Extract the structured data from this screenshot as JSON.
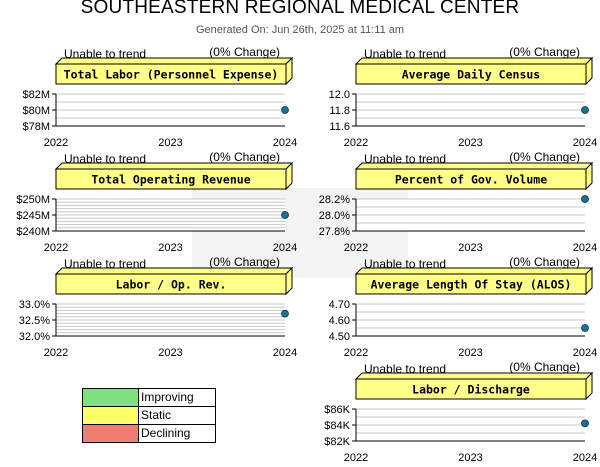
{
  "title": "SOUTHEASTERN REGIONAL MEDICAL CENTER",
  "generated": "Generated On: Jun 26th, 2025 at 11:11 am",
  "colors": {
    "banner": "#ffff88",
    "grid": "#c8c8c8",
    "point": "#1b6f95"
  },
  "legend": [
    {
      "label": "Improving",
      "color": "#7fe27f"
    },
    {
      "label": "Static",
      "color": "#ffff66"
    },
    {
      "label": "Declining",
      "color": "#f07d72"
    }
  ],
  "chart_data": [
    {
      "id": "total-labor",
      "type": "line",
      "title": "Total Labor (Personnel Expense)",
      "trend": "Unable to trend",
      "change": "(0% Change)",
      "x": [
        "2022",
        "2023",
        "2024"
      ],
      "ylim": [
        78,
        82
      ],
      "yticks": [
        {
          "v": 82,
          "label": "$82M"
        },
        {
          "v": 80,
          "label": "$80M"
        },
        {
          "v": 78,
          "label": "$78M"
        }
      ],
      "grid_steps": 4,
      "points": [
        {
          "x": "2024",
          "y": 80
        }
      ]
    },
    {
      "id": "average-daily-census",
      "type": "line",
      "title": "Average Daily Census",
      "trend": "Unable to trend",
      "change": "(0% Change)",
      "x": [
        "2022",
        "2023",
        "2024"
      ],
      "ylim": [
        11.6,
        12.0
      ],
      "yticks": [
        {
          "v": 12.0,
          "label": "12.0"
        },
        {
          "v": 11.8,
          "label": "11.8"
        },
        {
          "v": 11.6,
          "label": "11.6"
        }
      ],
      "grid_steps": 4,
      "points": [
        {
          "x": "2024",
          "y": 11.8
        }
      ]
    },
    {
      "id": "total-operating-revenue",
      "type": "line",
      "title": "Total Operating Revenue",
      "trend": "Unable to trend",
      "change": "(0% Change)",
      "x": [
        "2022",
        "2023",
        "2024"
      ],
      "ylim": [
        240,
        250
      ],
      "yticks": [
        {
          "v": 250,
          "label": "$250M"
        },
        {
          "v": 245,
          "label": "$245M"
        },
        {
          "v": 240,
          "label": "$240M"
        }
      ],
      "grid_steps": 10,
      "points": [
        {
          "x": "2024",
          "y": 245
        }
      ]
    },
    {
      "id": "percent-gov-volume",
      "type": "line",
      "title": "Percent of Gov. Volume",
      "trend": "Unable to trend",
      "change": "(0% Change)",
      "x": [
        "2022",
        "2023",
        "2024"
      ],
      "ylim": [
        27.8,
        28.2
      ],
      "yticks": [
        {
          "v": 28.2,
          "label": "28.2%"
        },
        {
          "v": 28.0,
          "label": "28.0%"
        },
        {
          "v": 27.8,
          "label": "27.8%"
        }
      ],
      "grid_steps": 4,
      "points": [
        {
          "x": "2024",
          "y": 28.2
        }
      ]
    },
    {
      "id": "labor-op-rev",
      "type": "line",
      "title": "Labor / Op. Rev.",
      "trend": "Unable to trend",
      "change": "(0% Change)",
      "x": [
        "2022",
        "2023",
        "2024"
      ],
      "ylim": [
        32.0,
        33.0
      ],
      "yticks": [
        {
          "v": 33.0,
          "label": "33.0%"
        },
        {
          "v": 32.5,
          "label": "32.5%"
        },
        {
          "v": 32.0,
          "label": "32.0%"
        }
      ],
      "grid_steps": 10,
      "points": [
        {
          "x": "2024",
          "y": 32.7
        }
      ]
    },
    {
      "id": "average-length-of-stay",
      "type": "line",
      "title": "Average Length Of Stay (ALOS)",
      "trend": "Unable to trend",
      "change": "(0% Change)",
      "x": [
        "2022",
        "2023",
        "2024"
      ],
      "ylim": [
        4.5,
        4.7
      ],
      "yticks": [
        {
          "v": 4.7,
          "label": "4.70"
        },
        {
          "v": 4.6,
          "label": "4.60"
        },
        {
          "v": 4.5,
          "label": "4.50"
        }
      ],
      "grid_steps": 4,
      "points": [
        {
          "x": "2024",
          "y": 4.55
        }
      ]
    },
    {
      "id": "labor-discharge",
      "type": "line",
      "title": "Labor / Discharge",
      "trend": "Unable to trend",
      "change": "(0% Change)",
      "x": [
        "2022",
        "2023",
        "2024"
      ],
      "ylim": [
        82,
        86
      ],
      "yticks": [
        {
          "v": 86,
          "label": "$86K"
        },
        {
          "v": 84,
          "label": "$84K"
        },
        {
          "v": 82,
          "label": "$82K"
        }
      ],
      "grid_steps": 4,
      "points": [
        {
          "x": "2024",
          "y": 84.2
        }
      ]
    }
  ]
}
